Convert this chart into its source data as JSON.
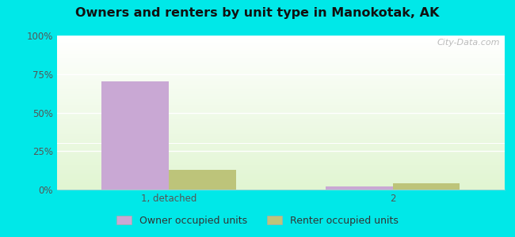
{
  "title": "Owners and renters by unit type in Manokotak, AK",
  "categories": [
    "1, detached",
    "2"
  ],
  "owner_values": [
    70.5,
    2.0
  ],
  "renter_values": [
    13.0,
    4.0
  ],
  "owner_color": "#c9a8d4",
  "renter_color": "#bdc47a",
  "ylim": [
    0,
    100
  ],
  "yticks": [
    0,
    25,
    50,
    75,
    100
  ],
  "ytick_labels": [
    "0%",
    "25%",
    "50%",
    "75%",
    "100%"
  ],
  "outer_bg": "#00e8e8",
  "plot_bg_top": "#f5fffa",
  "plot_bg_bottom": "#d8f0d0",
  "legend_owner": "Owner occupied units",
  "legend_renter": "Renter occupied units",
  "bar_width": 0.3,
  "watermark": "City-Data.com"
}
